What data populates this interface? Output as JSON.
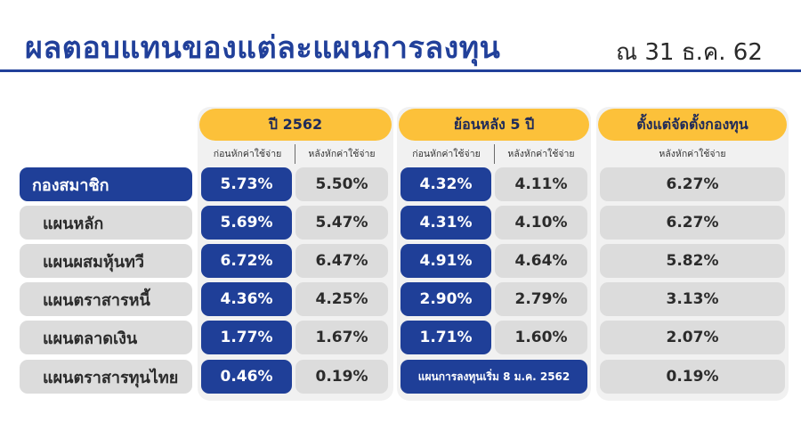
{
  "title": "ผลตอบแทนของแต่ละแผนการลงทุน",
  "subtitle": "ณ 31 ธ.ค. 62",
  "colors": {
    "title_blue": "#21409a",
    "cell_blue": "#1f3f98",
    "cell_grey": "#dcdcdc",
    "header_yellow": "#fcc13a",
    "panel_bg": "#f1f1f1"
  },
  "groups": {
    "year": {
      "label": "ปี 2562",
      "sub_before": "ก่อนหักค่าใช้จ่าย",
      "sub_after": "หลังหักค่าใช้จ่าย"
    },
    "five_year": {
      "label": "ย้อนหลัง 5 ปี",
      "sub_before": "ก่อนหักค่าใช้จ่าย",
      "sub_after": "หลังหักค่าใช้จ่าย"
    },
    "inception": {
      "label": "ตั้งแต่จัดตั้งกองทุน",
      "sub_after": "หลังหักค่าใช้จ่าย"
    }
  },
  "rows": [
    {
      "label": "กองสมาชิก",
      "y_before": "5.73%",
      "y_after": "5.50%",
      "f_before": "4.32%",
      "f_after": "4.11%",
      "since": "6.27%"
    },
    {
      "label": "แผนหลัก",
      "y_before": "5.69%",
      "y_after": "5.47%",
      "f_before": "4.31%",
      "f_after": "4.10%",
      "since": "6.27%"
    },
    {
      "label": "แผนผสมหุ้นทวี",
      "y_before": "6.72%",
      "y_after": "6.47%",
      "f_before": "4.91%",
      "f_after": "4.64%",
      "since": "5.82%"
    },
    {
      "label": "แผนตราสารหนี้",
      "y_before": "4.36%",
      "y_after": "4.25%",
      "f_before": "2.90%",
      "f_after": "2.79%",
      "since": "3.13%"
    },
    {
      "label": "แผนตลาดเงิน",
      "y_before": "1.77%",
      "y_after": "1.67%",
      "f_before": "1.71%",
      "f_after": "1.60%",
      "since": "2.07%"
    },
    {
      "label": "แผนตราสารทุนไทย",
      "y_before": "0.46%",
      "y_after": "0.19%",
      "f_note": "แผนการลงทุนเริ่ม 8 ม.ค. 2562",
      "since": "0.19%"
    }
  ]
}
